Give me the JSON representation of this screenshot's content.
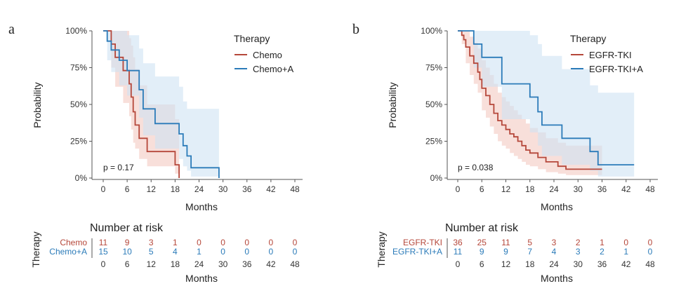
{
  "colors": {
    "red": "#b5473a",
    "blue": "#2b7bb9",
    "red_band": "#f4c9c2",
    "blue_band": "#cfe3f3",
    "axis": "#555555"
  },
  "panels": [
    {
      "letter": "a",
      "ylabel": "Probability",
      "xlabel": "Months",
      "ytick_labels": [
        "100%",
        "75%",
        "50%",
        "25%",
        "0%"
      ],
      "xticks": [
        0,
        6,
        12,
        18,
        24,
        30,
        36,
        42,
        48
      ],
      "legend_title": "Therapy",
      "pvalue": "p = 0.17",
      "risk_title": "Number at risk",
      "risk_ylabel": "Therapy",
      "risk_xlabel": "Months",
      "chart_data": {
        "type": "line",
        "xlim": [
          0,
          48
        ],
        "ylim": [
          0,
          1
        ],
        "series": [
          {
            "name": "Chemo",
            "color": "red",
            "steps": [
              [
                0,
                1.0
              ],
              [
                2,
                0.91
              ],
              [
                3,
                0.82
              ],
              [
                5,
                0.73
              ],
              [
                6.5,
                0.64
              ],
              [
                7,
                0.55
              ],
              [
                7.5,
                0.45
              ],
              [
                8,
                0.36
              ],
              [
                9,
                0.27
              ],
              [
                11,
                0.18
              ],
              [
                18,
                0.09
              ],
              [
                19,
                0.0
              ]
            ],
            "ci_upper": [
              [
                0,
                1.0
              ],
              [
                2,
                1.0
              ],
              [
                3,
                1.0
              ],
              [
                5,
                1.0
              ],
              [
                6.5,
                0.95
              ],
              [
                7,
                0.9
              ],
              [
                7.5,
                0.82
              ],
              [
                8,
                0.74
              ],
              [
                9,
                0.63
              ],
              [
                11,
                0.5
              ],
              [
                18,
                0.4
              ],
              [
                19,
                0.4
              ]
            ],
            "ci_lower": [
              [
                0,
                1.0
              ],
              [
                2,
                0.75
              ],
              [
                3,
                0.62
              ],
              [
                5,
                0.51
              ],
              [
                6.5,
                0.42
              ],
              [
                7,
                0.33
              ],
              [
                7.5,
                0.24
              ],
              [
                8,
                0.2
              ],
              [
                9,
                0.13
              ],
              [
                11,
                0.08
              ],
              [
                18,
                0.03
              ],
              [
                19,
                0.0
              ]
            ],
            "risk": [
              11,
              9,
              3,
              1,
              0,
              0,
              0,
              0,
              0
            ]
          },
          {
            "name": "Chemo+A",
            "color": "blue",
            "steps": [
              [
                0,
                1.0
              ],
              [
                1,
                0.93
              ],
              [
                2,
                0.87
              ],
              [
                4,
                0.8
              ],
              [
                6,
                0.73
              ],
              [
                9,
                0.6
              ],
              [
                10,
                0.47
              ],
              [
                13,
                0.37
              ],
              [
                19,
                0.3
              ],
              [
                20,
                0.22
              ],
              [
                21,
                0.15
              ],
              [
                22,
                0.07
              ],
              [
                29,
                0.0
              ]
            ],
            "ci_upper": [
              [
                0,
                1.0
              ],
              [
                1,
                1.0
              ],
              [
                2,
                1.0
              ],
              [
                4,
                1.0
              ],
              [
                6,
                0.97
              ],
              [
                9,
                0.88
              ],
              [
                10,
                0.78
              ],
              [
                13,
                0.69
              ],
              [
                19,
                0.62
              ],
              [
                20,
                0.52
              ],
              [
                21,
                0.47
              ],
              [
                22,
                0.47
              ],
              [
                29,
                0.47
              ]
            ],
            "ci_lower": [
              [
                0,
                1.0
              ],
              [
                1,
                0.8
              ],
              [
                2,
                0.72
              ],
              [
                4,
                0.63
              ],
              [
                6,
                0.56
              ],
              [
                9,
                0.41
              ],
              [
                10,
                0.29
              ],
              [
                13,
                0.2
              ],
              [
                19,
                0.13
              ],
              [
                20,
                0.08
              ],
              [
                21,
                0.05
              ],
              [
                22,
                0.01
              ],
              [
                29,
                0.0
              ]
            ],
            "risk": [
              15,
              10,
              5,
              4,
              1,
              0,
              0,
              0,
              0
            ]
          }
        ]
      }
    },
    {
      "letter": "b",
      "ylabel": "Probability",
      "xlabel": "Months",
      "ytick_labels": [
        "100%",
        "75%",
        "50%",
        "25%",
        "0%"
      ],
      "xticks": [
        0,
        6,
        12,
        18,
        24,
        30,
        36,
        42,
        48
      ],
      "legend_title": "Therapy",
      "pvalue": "p = 0.038",
      "risk_title": "Number at risk",
      "risk_ylabel": "Therapy",
      "risk_xlabel": "Months",
      "chart_data": {
        "type": "line",
        "xlim": [
          0,
          48
        ],
        "ylim": [
          0,
          1
        ],
        "series": [
          {
            "name": "EGFR-TKI",
            "color": "red",
            "steps": [
              [
                0,
                1.0
              ],
              [
                1,
                0.97
              ],
              [
                1.5,
                0.94
              ],
              [
                2,
                0.89
              ],
              [
                3,
                0.83
              ],
              [
                4,
                0.78
              ],
              [
                5,
                0.72
              ],
              [
                5.5,
                0.67
              ],
              [
                6,
                0.61
              ],
              [
                7,
                0.56
              ],
              [
                8,
                0.5
              ],
              [
                9,
                0.44
              ],
              [
                10,
                0.39
              ],
              [
                11,
                0.36
              ],
              [
                12,
                0.33
              ],
              [
                13,
                0.3
              ],
              [
                14,
                0.28
              ],
              [
                15,
                0.25
              ],
              [
                16,
                0.22
              ],
              [
                17,
                0.19
              ],
              [
                18,
                0.17
              ],
              [
                20,
                0.14
              ],
              [
                22,
                0.11
              ],
              [
                25,
                0.08
              ],
              [
                27,
                0.06
              ],
              [
                36,
                0.06
              ]
            ],
            "ci_upper": [
              [
                0,
                1.0
              ],
              [
                1,
                1.0
              ],
              [
                2,
                1.0
              ],
              [
                3,
                0.96
              ],
              [
                4,
                0.92
              ],
              [
                5,
                0.88
              ],
              [
                6,
                0.8
              ],
              [
                7,
                0.75
              ],
              [
                8,
                0.7
              ],
              [
                9,
                0.64
              ],
              [
                10,
                0.58
              ],
              [
                11,
                0.55
              ],
              [
                12,
                0.52
              ],
              [
                13,
                0.49
              ],
              [
                14,
                0.46
              ],
              [
                15,
                0.43
              ],
              [
                16,
                0.4
              ],
              [
                17,
                0.37
              ],
              [
                18,
                0.34
              ],
              [
                20,
                0.31
              ],
              [
                22,
                0.27
              ],
              [
                25,
                0.24
              ],
              [
                27,
                0.22
              ],
              [
                36,
                0.22
              ]
            ],
            "ci_lower": [
              [
                0,
                1.0
              ],
              [
                1,
                0.91
              ],
              [
                2,
                0.78
              ],
              [
                3,
                0.7
              ],
              [
                4,
                0.64
              ],
              [
                5,
                0.58
              ],
              [
                6,
                0.46
              ],
              [
                7,
                0.41
              ],
              [
                8,
                0.35
              ],
              [
                9,
                0.3
              ],
              [
                10,
                0.25
              ],
              [
                11,
                0.22
              ],
              [
                12,
                0.2
              ],
              [
                13,
                0.17
              ],
              [
                14,
                0.15
              ],
              [
                15,
                0.13
              ],
              [
                16,
                0.11
              ],
              [
                17,
                0.09
              ],
              [
                18,
                0.08
              ],
              [
                20,
                0.06
              ],
              [
                22,
                0.04
              ],
              [
                25,
                0.03
              ],
              [
                27,
                0.02
              ],
              [
                36,
                0.02
              ]
            ],
            "risk": [
              36,
              25,
              11,
              5,
              3,
              2,
              1,
              0,
              0
            ]
          },
          {
            "name": "EGFR-TKI+A",
            "color": "blue",
            "steps": [
              [
                0,
                1.0
              ],
              [
                4,
                0.91
              ],
              [
                6,
                0.82
              ],
              [
                11,
                0.64
              ],
              [
                18,
                0.55
              ],
              [
                20,
                0.45
              ],
              [
                21,
                0.36
              ],
              [
                26,
                0.27
              ],
              [
                33,
                0.18
              ],
              [
                35,
                0.09
              ],
              [
                44,
                0.09
              ]
            ],
            "ci_upper": [
              [
                0,
                1.0
              ],
              [
                4,
                1.0
              ],
              [
                6,
                1.0
              ],
              [
                11,
                1.0
              ],
              [
                18,
                0.97
              ],
              [
                20,
                0.91
              ],
              [
                21,
                0.83
              ],
              [
                26,
                0.74
              ],
              [
                33,
                0.63
              ],
              [
                35,
                0.58
              ],
              [
                44,
                0.58
              ]
            ],
            "ci_lower": [
              [
                0,
                1.0
              ],
              [
                4,
                0.75
              ],
              [
                6,
                0.62
              ],
              [
                11,
                0.4
              ],
              [
                18,
                0.31
              ],
              [
                20,
                0.22
              ],
              [
                21,
                0.15
              ],
              [
                26,
                0.09
              ],
              [
                33,
                0.05
              ],
              [
                35,
                0.01
              ],
              [
                44,
                0.01
              ]
            ],
            "risk": [
              11,
              9,
              9,
              7,
              4,
              3,
              2,
              1,
              0
            ]
          }
        ]
      }
    }
  ]
}
